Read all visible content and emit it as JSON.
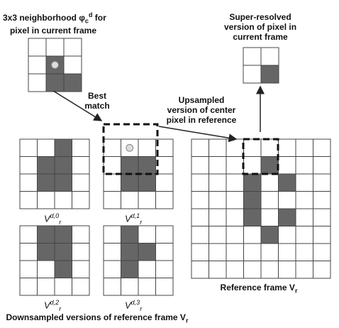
{
  "labels": {
    "neighborhood_line1": "3x3 neighborhood φ",
    "neighborhood_sub": "c",
    "neighborhood_sup": "d",
    "neighborhood_tail": " for",
    "neighborhood_line2": "pixel in current frame",
    "super_line1": "Super-resolved",
    "super_line2": "version of pixel in",
    "super_line3": "current frame",
    "best_line1": "Best",
    "best_line2": "match",
    "upsampled_line1": "Upsampled",
    "upsampled_line2": "version of center",
    "upsampled_line3": "pixel in reference",
    "reference_text": "Reference frame V",
    "reference_sub": "r",
    "downsampled_text": "Downsampled versions of reference frame V",
    "downsampled_sub": "r"
  },
  "sublabels": [
    {
      "base": "V",
      "sup": "d,0",
      "sub": "r"
    },
    {
      "base": "V",
      "sup": "d,1",
      "sub": "r"
    },
    {
      "base": "V",
      "sup": "d,2",
      "sub": "r"
    },
    {
      "base": "V",
      "sup": "d,3",
      "sub": "r"
    }
  ],
  "colors": {
    "dark_cell": "#666666",
    "grid_line": "#444444",
    "arrow": "#222222",
    "marker": "#dddddd"
  },
  "grids": {
    "neighborhood": {
      "rows": 3,
      "cols": 3,
      "filled": [
        [
          1,
          1
        ],
        [
          2,
          1
        ],
        [
          2,
          2
        ]
      ],
      "marker": [
        1,
        1
      ]
    },
    "super_resolved": {
      "rows": 2,
      "cols": 2,
      "filled": [
        [
          1,
          1
        ]
      ]
    },
    "downsampled": [
      {
        "rows": 4,
        "cols": 4,
        "filled": [
          [
            0,
            2
          ],
          [
            1,
            1
          ],
          [
            1,
            2
          ],
          [
            2,
            1
          ],
          [
            2,
            2
          ]
        ]
      },
      {
        "rows": 4,
        "cols": 4,
        "filled": [
          [
            1,
            1
          ],
          [
            1,
            2
          ],
          [
            2,
            1
          ],
          [
            2,
            2
          ]
        ],
        "marker": [
          0,
          1
        ]
      },
      {
        "rows": 4,
        "cols": 4,
        "filled": [
          [
            0,
            1
          ],
          [
            0,
            2
          ],
          [
            1,
            1
          ],
          [
            1,
            2
          ],
          [
            2,
            2
          ]
        ]
      },
      {
        "rows": 4,
        "cols": 4,
        "filled": [
          [
            0,
            1
          ],
          [
            1,
            1
          ],
          [
            1,
            2
          ],
          [
            2,
            1
          ]
        ]
      }
    ],
    "reference": {
      "rows": 8,
      "cols": 8,
      "filled": [
        [
          1,
          4
        ],
        [
          2,
          3
        ],
        [
          2,
          5
        ],
        [
          3,
          3
        ],
        [
          4,
          3
        ],
        [
          4,
          5
        ],
        [
          5,
          4
        ]
      ]
    }
  }
}
